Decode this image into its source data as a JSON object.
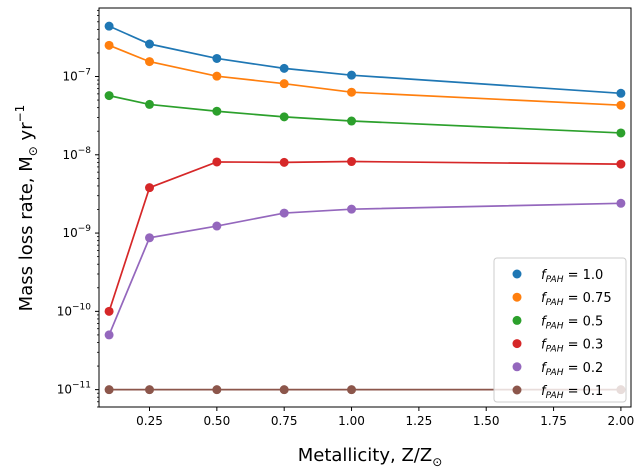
{
  "chart_data": {
    "type": "line",
    "xlabel_text": "Metallicity, Z/Z",
    "xlabel_sub": "⊙",
    "ylabel_text": "Mass loss rate, M",
    "ylabel_sub": "⊙",
    "ylabel_unit": " yr",
    "ylabel_sup": "−1",
    "y_scale": "log",
    "xlim": [
      0.0625,
      2.0375
    ],
    "ylim": [
      6e-12,
      7.5e-07
    ],
    "x_ticks": [
      0.25,
      0.5,
      0.75,
      1.0,
      1.25,
      1.5,
      1.75,
      2.0
    ],
    "x_tick_labels": [
      "0.25",
      "0.50",
      "0.75",
      "1.00",
      "1.25",
      "1.50",
      "1.75",
      "2.00"
    ],
    "y_ticks": [
      -11,
      -10,
      -9,
      -8,
      -7
    ],
    "y_tick_labels": [
      {
        "base": "10",
        "exp": "−11"
      },
      {
        "base": "10",
        "exp": "−10"
      },
      {
        "base": "10",
        "exp": "−9"
      },
      {
        "base": "10",
        "exp": "−8"
      },
      {
        "base": "10",
        "exp": "−7"
      }
    ],
    "grid": false,
    "legend_position": "lower-right",
    "x": [
      0.1,
      0.25,
      0.5,
      0.75,
      1.0,
      2.0
    ],
    "series": [
      {
        "name": "1.0",
        "color": "#1f77b4",
        "values": [
          4.4e-07,
          2.6e-07,
          1.7e-07,
          1.27e-07,
          1.04e-07,
          6.1e-08
        ]
      },
      {
        "name": "0.75",
        "color": "#ff7f0e",
        "values": [
          2.5e-07,
          1.55e-07,
          1.01e-07,
          8.1e-08,
          6.3e-08,
          4.3e-08
        ]
      },
      {
        "name": "0.5",
        "color": "#2ca02c",
        "values": [
          5.7e-08,
          4.4e-08,
          3.6e-08,
          3.05e-08,
          2.7e-08,
          1.9e-08
        ]
      },
      {
        "name": "0.3",
        "color": "#d62728",
        "values": [
          1e-10,
          3.8e-09,
          8.1e-09,
          8e-09,
          8.2e-09,
          7.6e-09
        ]
      },
      {
        "name": "0.2",
        "color": "#9467bd",
        "values": [
          5e-11,
          8.7e-10,
          1.23e-09,
          1.8e-09,
          2.02e-09,
          2.4e-09
        ]
      },
      {
        "name": "0.1",
        "color": "#8c564b",
        "values": [
          1e-11,
          1e-11,
          1e-11,
          1e-11,
          1e-11,
          1e-11
        ]
      }
    ],
    "legend_prefix_symbol": "f",
    "legend_prefix_sub": "PAH",
    "legend_equals": " = "
  }
}
